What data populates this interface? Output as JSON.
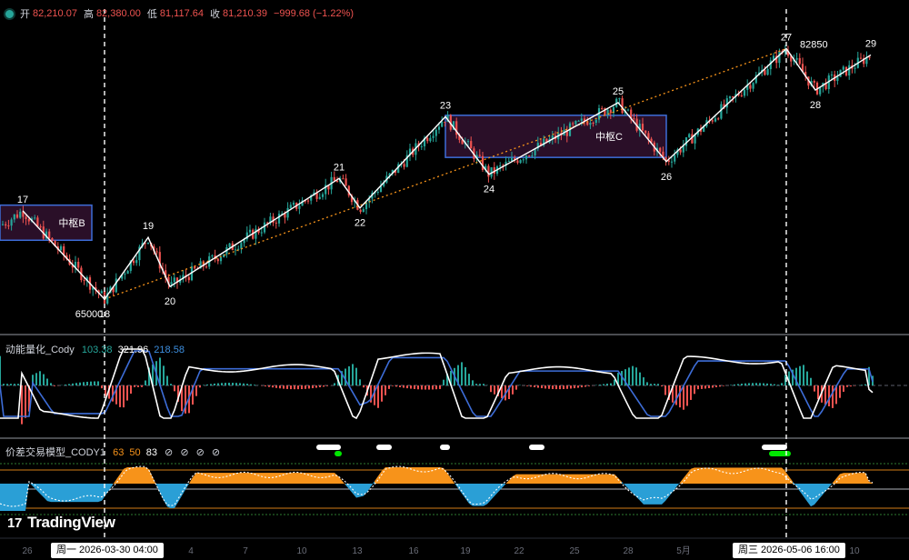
{
  "header": {
    "open_label": "开",
    "open": "82,210.07",
    "high_label": "高",
    "high": "82,380.00",
    "low_label": "低",
    "low": "81,117.64",
    "close_label": "收",
    "close": "81,210.39",
    "change": "−999.68 (−1.22%)"
  },
  "colors": {
    "up": "#26a69a",
    "down": "#ef5350",
    "stroke_white": "#ffffff",
    "zone_border": "#3d6dd8",
    "zone_fill": "#2a0f28",
    "trend": "#f7931a",
    "macd_fast": "#ffffff",
    "macd_slow": "#3d6dd8",
    "orange": "#f7931a",
    "blue": "#2a9fd6"
  },
  "chart_data": {
    "type": "candlestick",
    "price_range": [
      63000,
      84500
    ],
    "zigzag_points": [
      {
        "label": "17",
        "price": 71300
      },
      {
        "label": "65000",
        "price": 65000
      },
      {
        "label": "18",
        "price": 65000
      },
      {
        "label": "19",
        "price": 69400
      },
      {
        "label": "20",
        "price": 65900
      },
      {
        "label": "21",
        "price": 73600
      },
      {
        "label": "22",
        "price": 71500
      },
      {
        "label": "23",
        "price": 78000
      },
      {
        "label": "24",
        "price": 73900
      },
      {
        "label": "25",
        "price": 79000
      },
      {
        "label": "26",
        "price": 74800
      },
      {
        "label": "27",
        "price": 82850
      },
      {
        "label": "82850",
        "price": 82850
      },
      {
        "label": "28",
        "price": 79900
      },
      {
        "label": "29",
        "price": 82400
      }
    ],
    "zones": [
      {
        "label": "中枢B",
        "low": 69200,
        "high": 71700
      },
      {
        "label": "中枢C",
        "low": 75100,
        "high": 78100
      }
    ],
    "x_ticks": [
      "26",
      "4",
      "7",
      "10",
      "13",
      "16",
      "19",
      "22",
      "25",
      "28",
      "5月",
      "4",
      "10"
    ],
    "x_highlights": [
      "周一 2026-03-30  04:00",
      "周三 2026-05-06  16:00"
    ],
    "indicator1": {
      "name": "动能量化_Cody",
      "values": [
        "103.38",
        "321.96",
        "218.58"
      ]
    },
    "indicator2": {
      "name": "价差交易模型_CODY1",
      "values": [
        "63",
        "50",
        "83"
      ],
      "flags": [
        "⊘",
        "⊘",
        "⊘",
        "⊘"
      ]
    }
  },
  "branding": {
    "logo_mark": "17",
    "logo_text": "TradingView"
  }
}
